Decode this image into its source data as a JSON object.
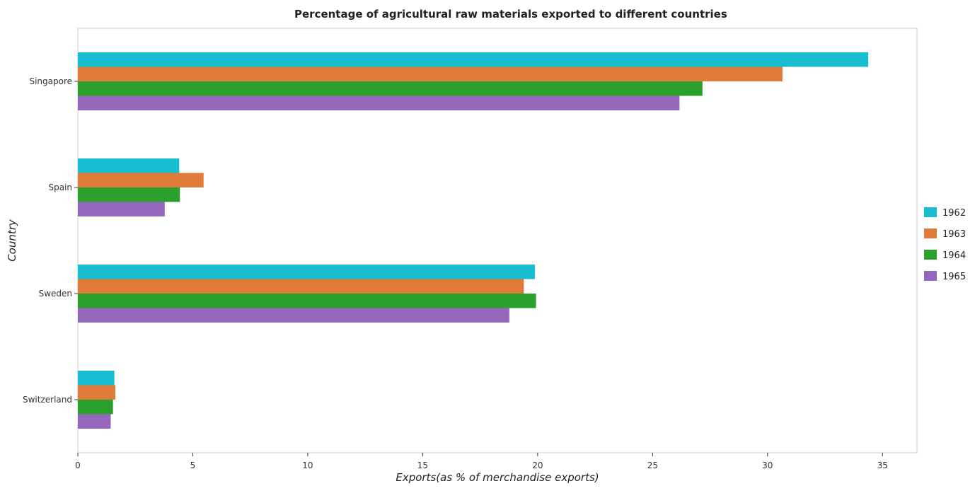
{
  "chart_data": {
    "type": "bar",
    "orientation": "horizontal",
    "title": "Percentage of agricultural raw materials exported to different countries",
    "xlabel": "Exports(as % of merchandise exports)",
    "ylabel": "Country",
    "categories": [
      "Singapore",
      "Spain",
      "Sweden",
      "Switzerland"
    ],
    "series": [
      {
        "name": "1962",
        "color": "#17becf",
        "values": [
          34.38,
          4.41,
          19.88,
          1.59
        ]
      },
      {
        "name": "1963",
        "color": "#e07b39",
        "values": [
          30.65,
          5.47,
          19.4,
          1.63
        ]
      },
      {
        "name": "1964",
        "color": "#2ca02c",
        "values": [
          27.17,
          4.44,
          19.93,
          1.53
        ]
      },
      {
        "name": "1965",
        "color": "#9467bd",
        "values": [
          26.17,
          3.78,
          18.77,
          1.43
        ]
      }
    ],
    "xlim": [
      0,
      36.5
    ],
    "xticks": [
      0,
      5,
      10,
      15,
      20,
      25,
      30,
      35
    ],
    "xtick_labels": [
      "0",
      "5",
      "10",
      "15",
      "20",
      "25",
      "30",
      "35"
    ],
    "grid": false,
    "legend_position": "right"
  }
}
